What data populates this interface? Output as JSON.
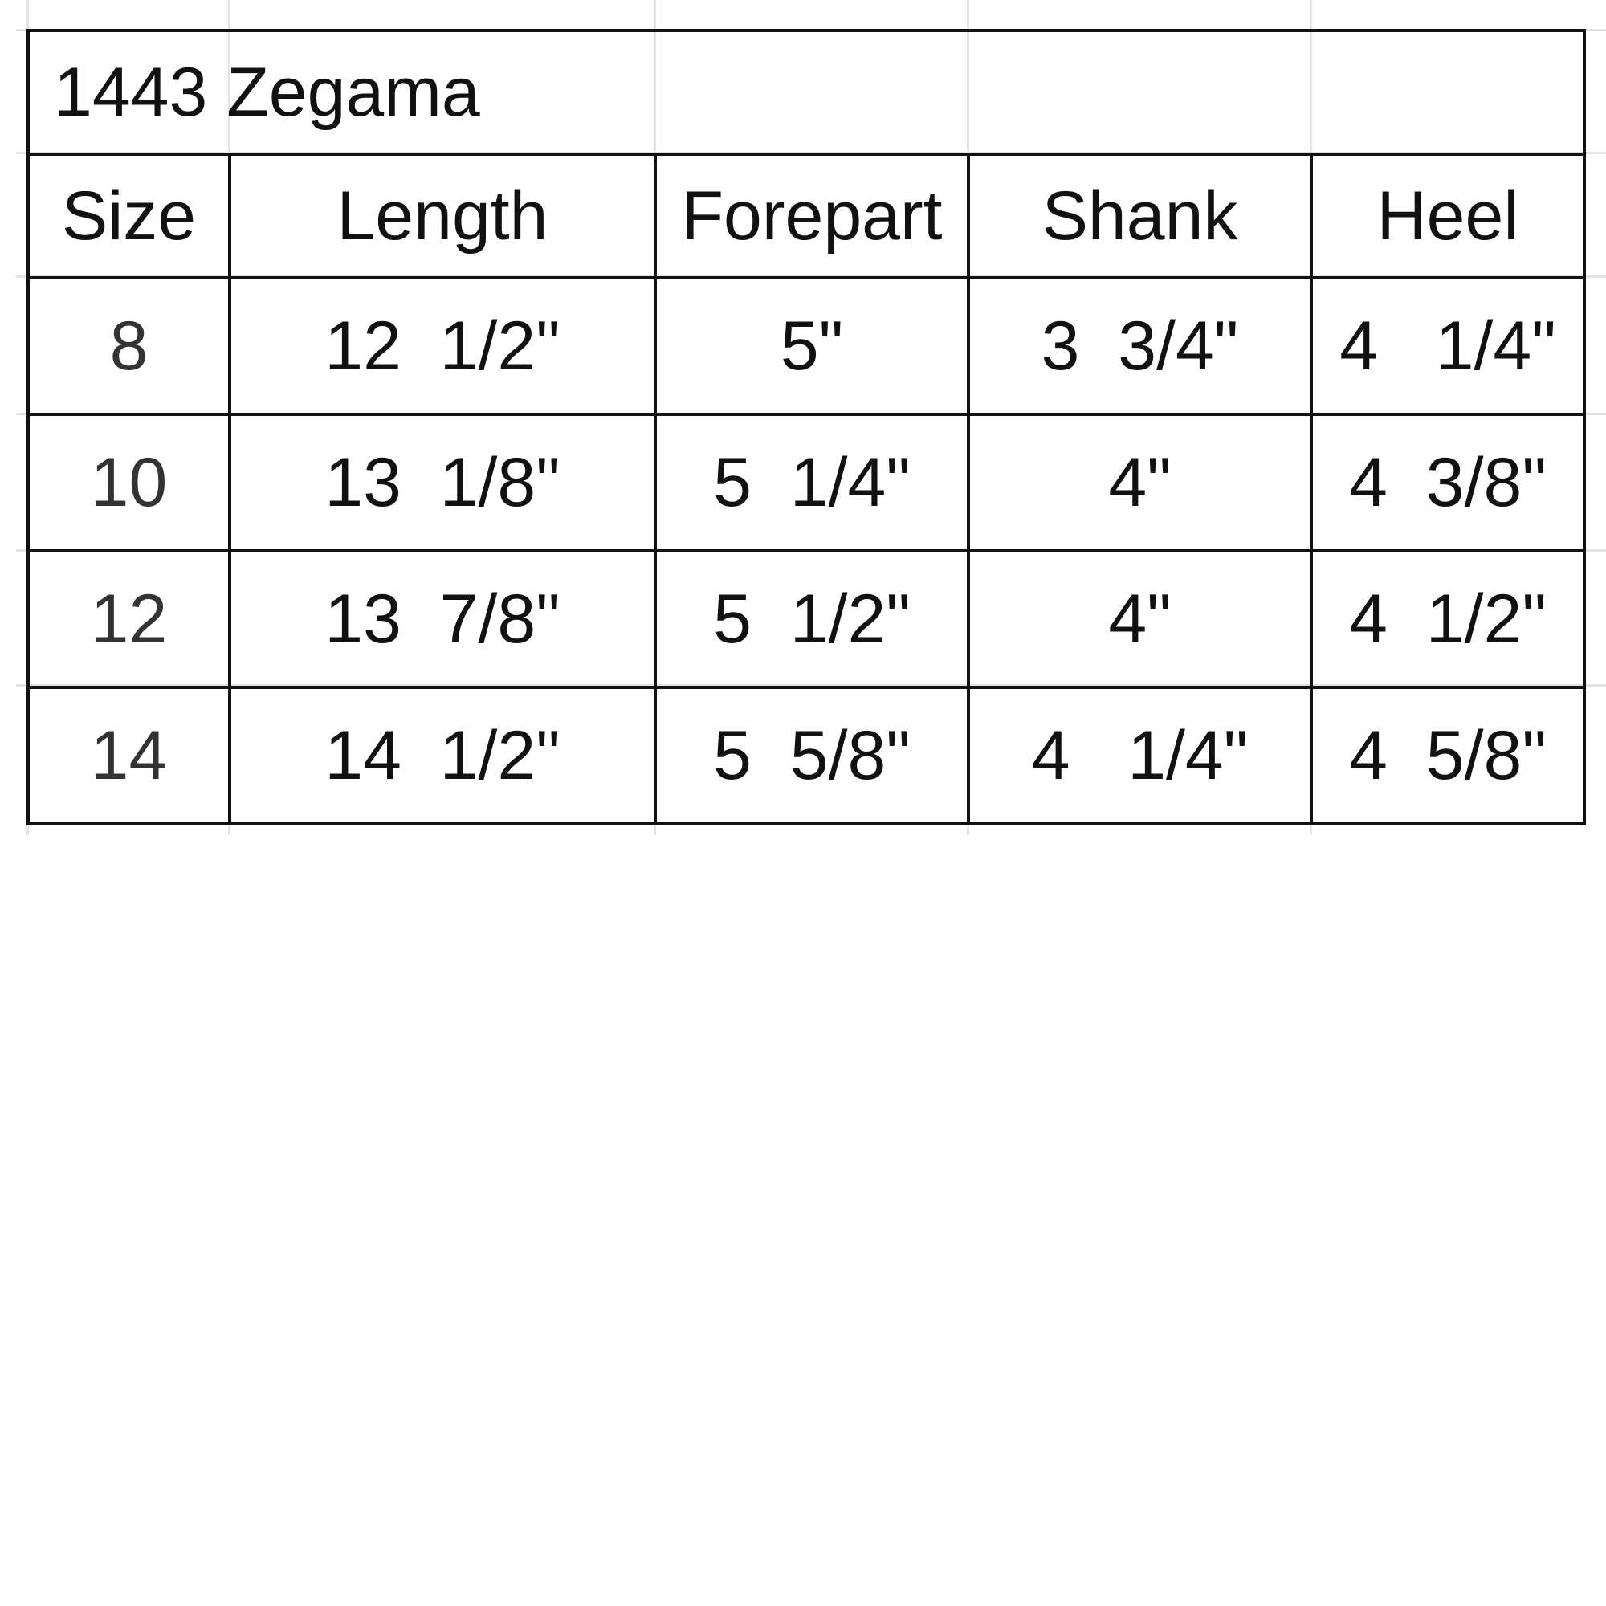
{
  "title": "1443 Zegama",
  "headers": [
    "Size",
    "Length",
    "Forepart",
    "Shank",
    "Heel"
  ],
  "rows": [
    [
      "8",
      "12  1/2\"",
      "5\"",
      "3  3/4\"",
      "4   1/4\""
    ],
    [
      "10",
      "13  1/8\"",
      "5  1/4\"",
      "4\"",
      "4  3/8\""
    ],
    [
      "12",
      "13  7/8\"",
      "5  1/2\"",
      "4\"",
      "4  1/2\""
    ],
    [
      "14",
      "14  1/2\"",
      "5  5/8\"",
      "4   1/4\"",
      "4  5/8\""
    ]
  ]
}
